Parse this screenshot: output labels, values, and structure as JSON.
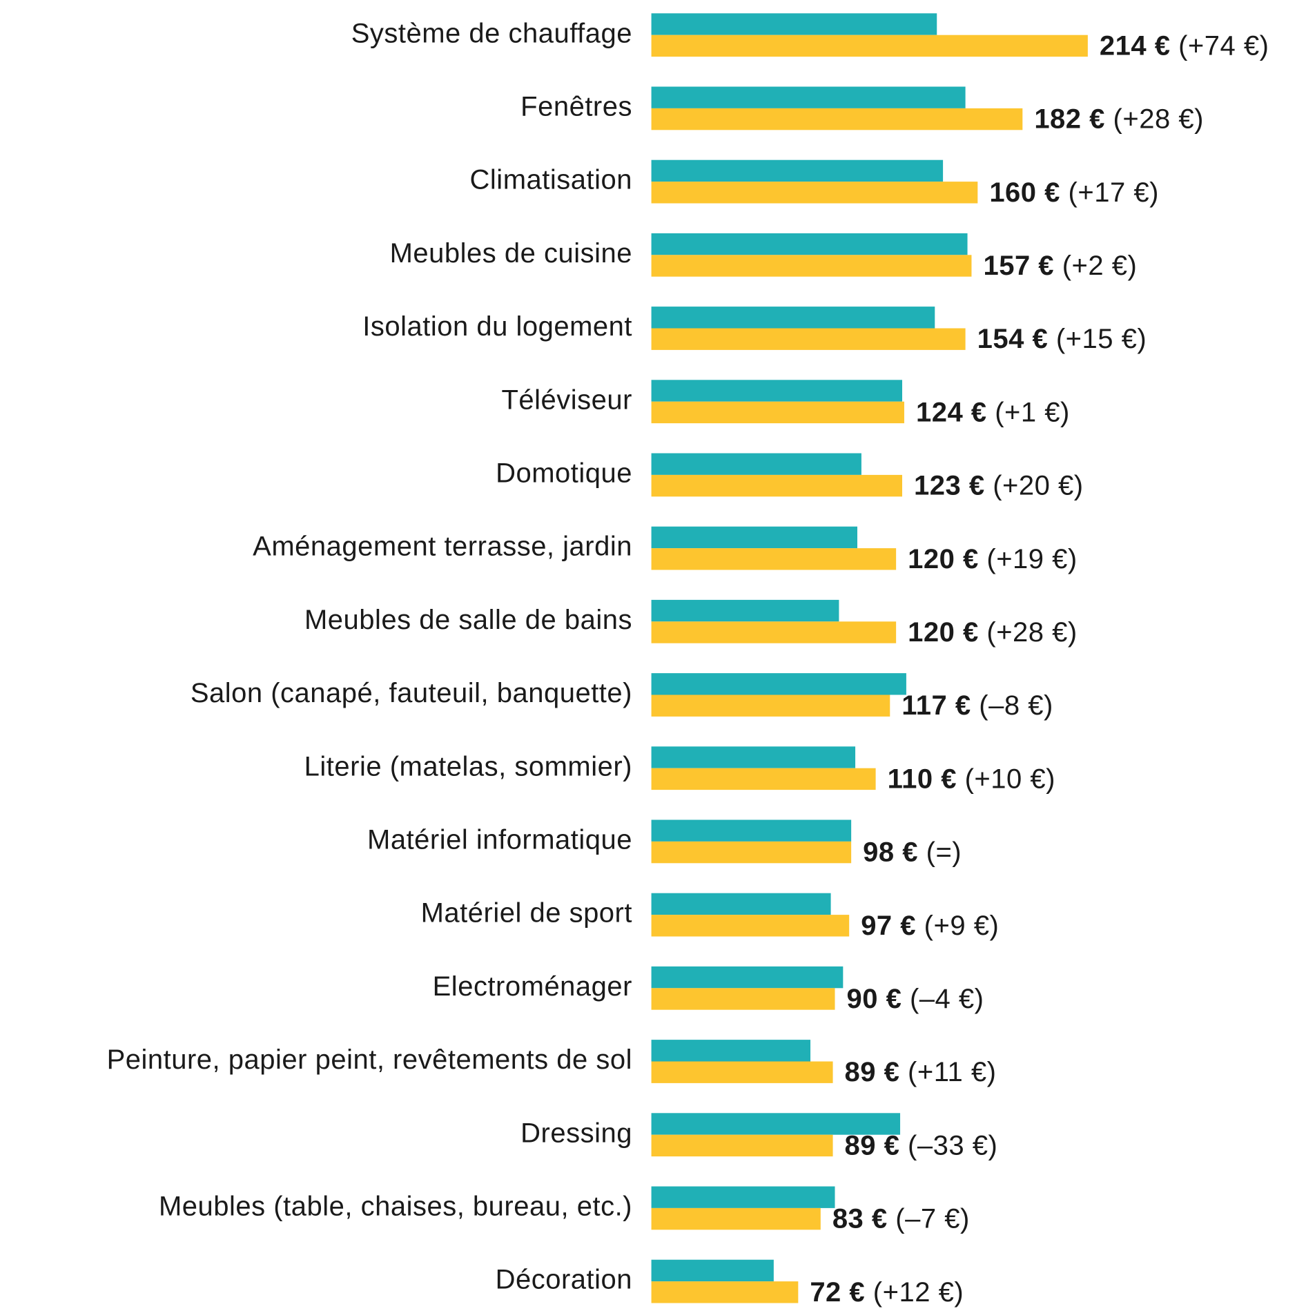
{
  "chart_data": {
    "type": "bar",
    "orientation": "horizontal",
    "categories": [
      "Système de chauffage",
      "Fenêtres",
      "Climatisation",
      "Meubles de cuisine",
      "Isolation du logement",
      "Téléviseur",
      "Domotique",
      "Aménagement terrasse, jardin",
      "Meubles de salle de bains",
      "Salon (canapé, fauteuil, banquette)",
      "Literie (matelas, sommier)",
      "Matériel informatique",
      "Matériel de sport",
      "Electroménager",
      "Peinture, papier peint, revêtements de sol",
      "Dressing",
      "Meubles (table, chaises, bureau, etc.)",
      "Décoration"
    ],
    "series": [
      {
        "color": "#20b0b6",
        "values": [
          140,
          154,
          143,
          155,
          139,
          123,
          103,
          101,
          92,
          125,
          100,
          98,
          88,
          94,
          78,
          122,
          90,
          60
        ]
      },
      {
        "color": "#fdc52f",
        "values": [
          214,
          182,
          160,
          157,
          154,
          124,
          123,
          120,
          120,
          117,
          110,
          98,
          97,
          90,
          89,
          89,
          83,
          72
        ],
        "value_labels": [
          "214 €",
          "182 €",
          "160 €",
          "157 €",
          "154 €",
          "124 €",
          "123 €",
          "120 €",
          "120 €",
          "117 €",
          "110 €",
          "98 €",
          "97 €",
          "90 €",
          "89 €",
          "89 €",
          "83 €",
          "72 €"
        ],
        "change_labels": [
          "(+74 €)",
          "(+28 €)",
          "(+17 €)",
          "(+2 €)",
          "(+15 €)",
          "(+1 €)",
          "(+20 €)",
          "(+19 €)",
          "(+28 €)",
          "(–8 €)",
          "(+10 €)",
          "(=)",
          "(+9 €)",
          "(–4 €)",
          "(+11 €)",
          "(–33 €)",
          "(–7 €)",
          "(+12 €)"
        ]
      }
    ],
    "xlim": [
      0,
      321
    ]
  }
}
